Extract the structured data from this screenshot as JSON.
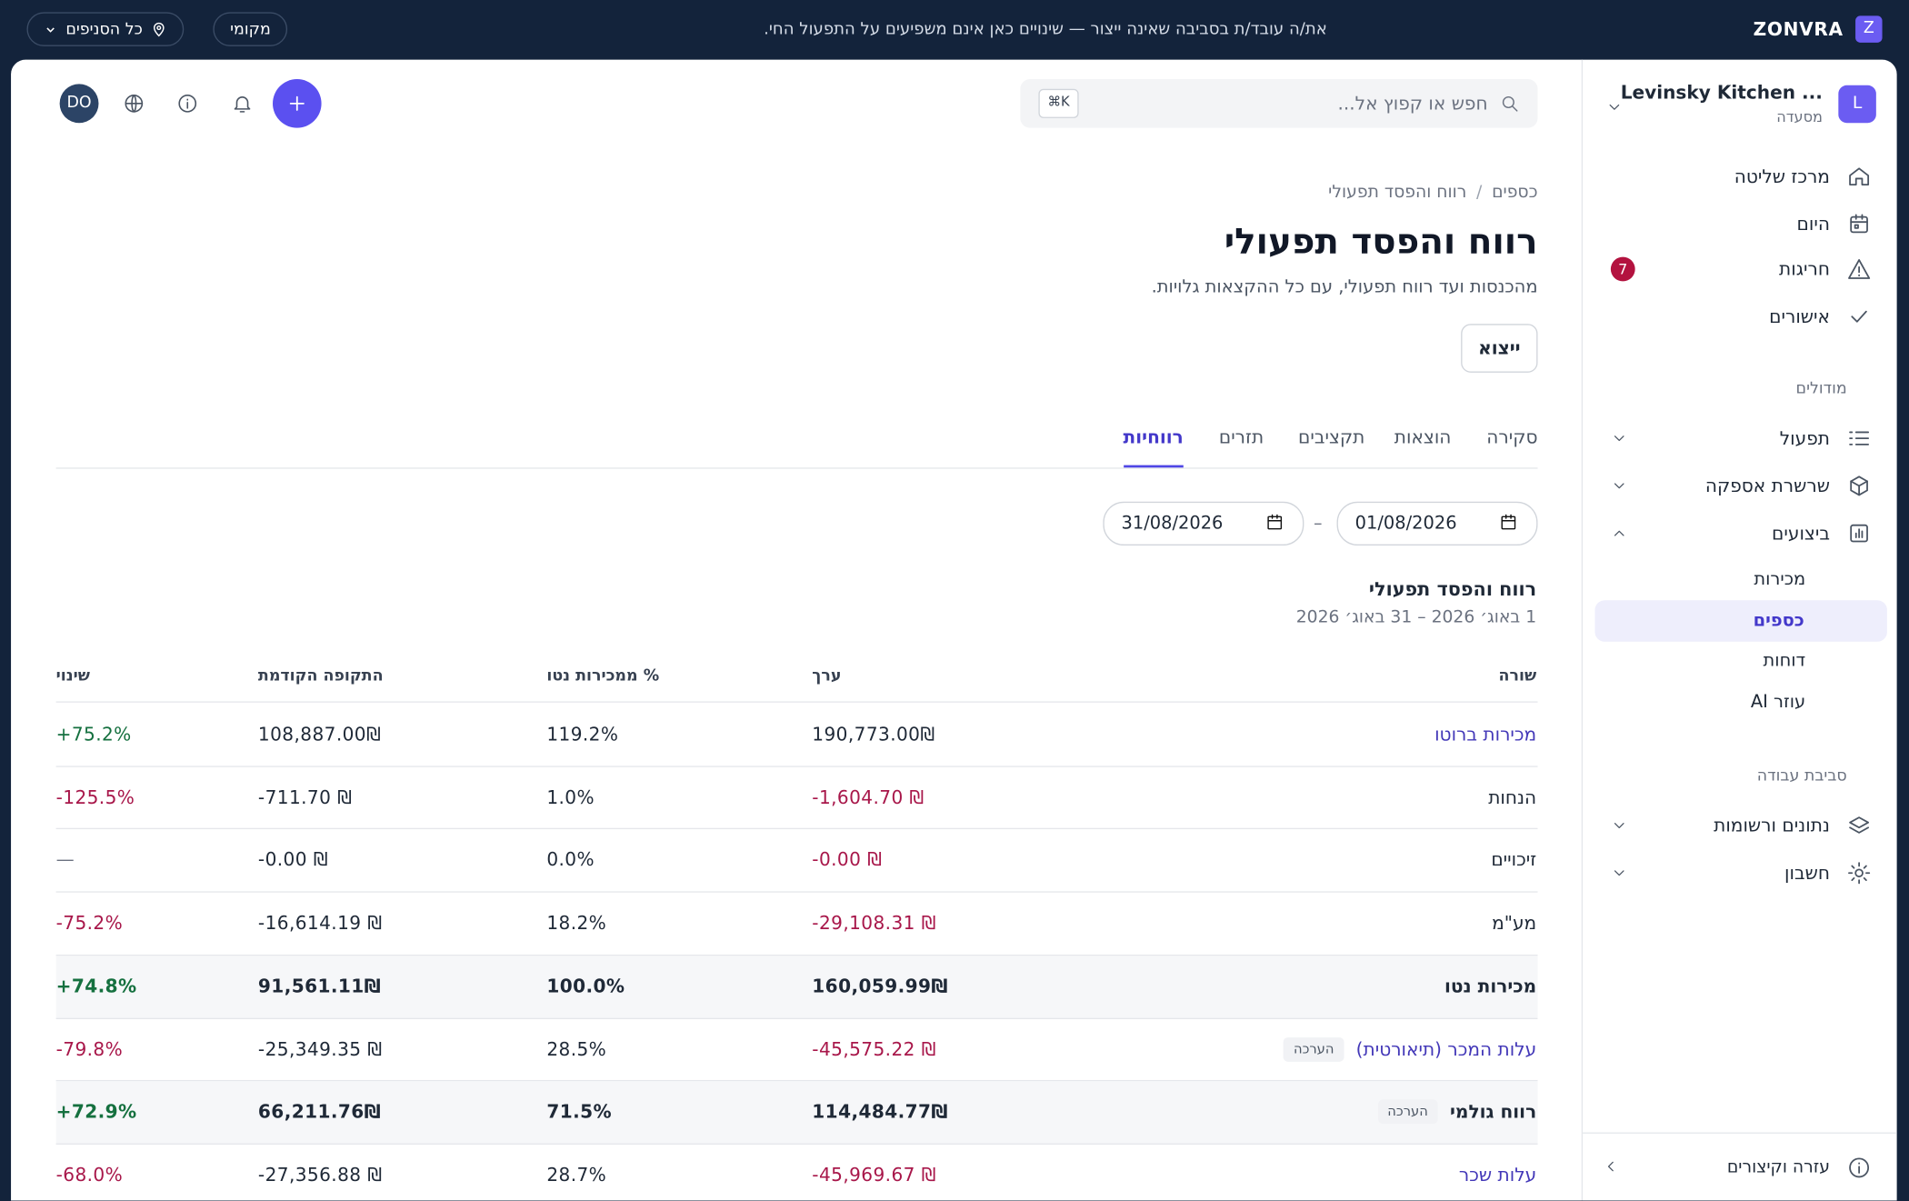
{
  "banner": {
    "brand": "ZONVRA",
    "logo": "Z",
    "message": "את/ה עובד/ת בסביבה שאינה ייצור — שינויים כאן אינם משפיעים על התפעול החי.",
    "mode": "מקומי",
    "branches": "כל הסניפים"
  },
  "sidebar": {
    "org_name": "Levinsky Kitchen ...",
    "org_type": "מסעדה",
    "org_avatar": "L",
    "main": [
      {
        "label": "מרכז שליטה"
      },
      {
        "label": "היום"
      },
      {
        "label": "חריגות",
        "badge": "7"
      },
      {
        "label": "אישורים"
      }
    ],
    "modules_title": "מודולים",
    "modules": [
      "תפעול",
      "שרשרת אספקה",
      "ביצועים"
    ],
    "sub": [
      "מכירות",
      "כספים",
      "דוחות",
      "עוזר AI"
    ],
    "workspace_title": "סביבת עבודה",
    "workspace": [
      "נתונים ורשומות",
      "חשבון"
    ],
    "footer": "עזרה וקיצורים"
  },
  "topbar": {
    "search": "חפש או קפוץ אל...",
    "shortcut": "⌘K",
    "user": "DO"
  },
  "header": {
    "breadcrumb": [
      "כספים",
      "רווח והפסד תפעולי"
    ],
    "separator": "/",
    "title": "רווח והפסד תפעולי",
    "subtitle": "מהכנסות ועד רווח תפעולי, עם כל ההקצאות גלויות.",
    "export": "ייצוא"
  },
  "tabs": [
    "סקירה",
    "הוצאות",
    "תקציבים",
    "תזרים",
    "רווחיות"
  ],
  "dates": {
    "from": "01/08/2026",
    "to": "31/08/2026",
    "dash": "–"
  },
  "report": {
    "title": "רווח והפסד תפעולי",
    "period": "1 באוג׳ 2026 – 31 באוג׳ 2026"
  },
  "table": {
    "columns": [
      "שורה",
      "ערך",
      "% ממכירות נטו",
      "התקופה הקודמת",
      "שינוי"
    ],
    "rows": [
      {
        "label": "מכירות ברוטו",
        "value": "190,773.00₪",
        "pct": "119.2%",
        "prev": "108,887.00₪",
        "change": "+75.2%"
      },
      {
        "label": "הנחות",
        "value": "-1,604.70 ₪",
        "pct": "1.0%",
        "prev": "-711.70 ₪",
        "change": "-125.5%"
      },
      {
        "label": "זיכויים",
        "value": "-0.00 ₪",
        "pct": "0.0%",
        "prev": "-0.00 ₪",
        "change": "—"
      },
      {
        "label": "מע\"מ",
        "value": "-29,108.31 ₪",
        "pct": "18.2%",
        "prev": "-16,614.19 ₪",
        "change": "-75.2%"
      },
      {
        "label": "מכירות נטו",
        "value": "160,059.99₪",
        "pct": "100.0%",
        "prev": "91,561.11₪",
        "change": "+74.8%"
      },
      {
        "label": "עלות המכר (תיאורטית)",
        "badge": "הערכה",
        "value": "-45,575.22 ₪",
        "pct": "28.5%",
        "prev": "-25,349.35 ₪",
        "change": "-79.8%"
      },
      {
        "label": "רווח גולמי",
        "badge": "הערכה",
        "value": "114,484.77₪",
        "pct": "71.5%",
        "prev": "66,211.76₪",
        "change": "+72.9%"
      },
      {
        "label": "עלות שכר",
        "value": "-45,969.67 ₪",
        "pct": "28.7%",
        "prev": "-27,356.88 ₪",
        "change": "-68.0%"
      }
    ]
  }
}
